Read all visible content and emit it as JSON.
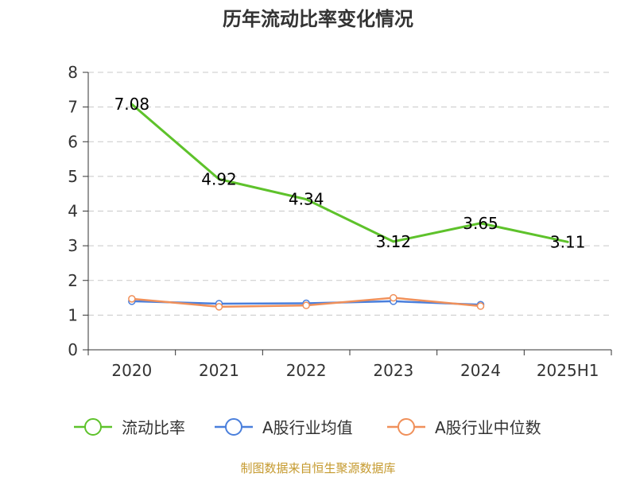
{
  "chart_data": {
    "type": "line",
    "title": "历年流动比率变化情况",
    "categories": [
      "2020",
      "2021",
      "2022",
      "2023",
      "2024",
      "2025H1"
    ],
    "y_ticks": [
      "0",
      "1",
      "2",
      "3",
      "4",
      "5",
      "6",
      "7",
      "8"
    ],
    "ylim": [
      0,
      8
    ],
    "grid": true,
    "legend_position": "bottom",
    "series": [
      {
        "name": "流动比率",
        "color": "#5ec22b",
        "values": [
          7.08,
          4.92,
          4.34,
          3.12,
          3.65,
          3.11
        ],
        "labels": [
          "7.08",
          "4.92",
          "4.34",
          "3.12",
          "3.65",
          "3.11"
        ]
      },
      {
        "name": "A股行业均值",
        "color": "#4a7fdc",
        "values": [
          1.4,
          1.33,
          1.34,
          1.4,
          1.3,
          null
        ]
      },
      {
        "name": "A股行业中位数",
        "color": "#f0905a",
        "values": [
          1.47,
          1.24,
          1.28,
          1.5,
          1.26,
          null
        ]
      }
    ],
    "source": "制图数据来自恒生聚源数据库"
  }
}
